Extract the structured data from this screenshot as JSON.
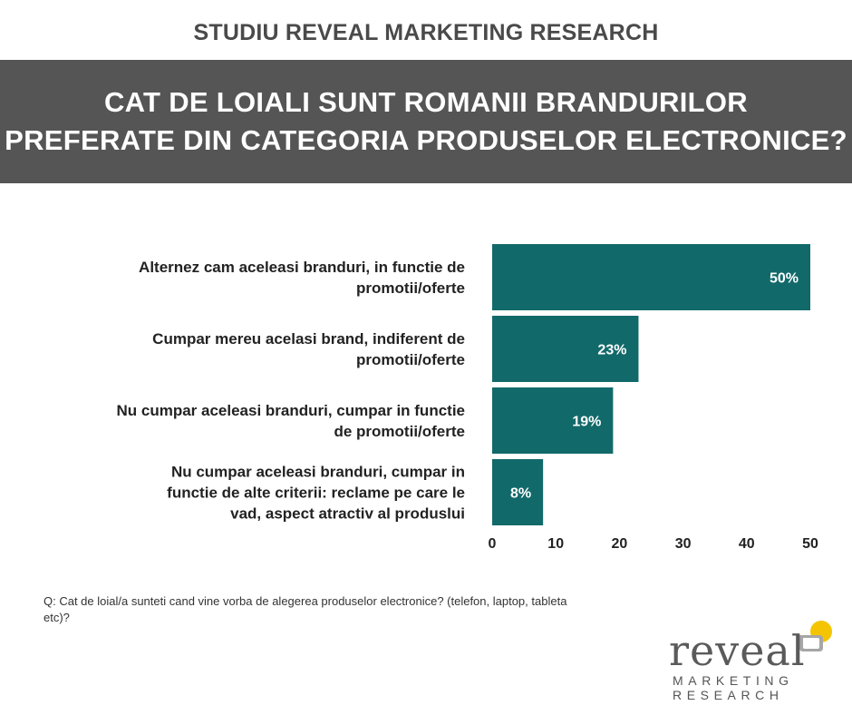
{
  "header": {
    "study_title": "STUDIU REVEAL MARKETING RESEARCH",
    "banner_line1": "CAT DE LOIALI SUNT ROMANII BRANDURILOR",
    "banner_line2": "PREFERATE DIN CATEGORIA PRODUSELOR ELECTRONICE?"
  },
  "chart_data": {
    "type": "bar",
    "orientation": "horizontal",
    "categories": [
      [
        "Alternez cam aceleasi branduri, in functie de",
        "promotii/oferte"
      ],
      [
        "Cumpar mereu acelasi brand, indiferent de",
        "promotii/oferte"
      ],
      [
        "Nu cumpar aceleasi branduri, cumpar in functie",
        "de promotii/oferte"
      ],
      [
        "Nu cumpar aceleasi branduri, cumpar in",
        "functie de alte criterii: reclame pe care le",
        "vad, aspect atractiv al produslui"
      ]
    ],
    "values": [
      50,
      23,
      19,
      8
    ],
    "data_labels": [
      "50%",
      "23%",
      "19%",
      "8%"
    ],
    "xlim": [
      0,
      50
    ],
    "xticks": [
      "0",
      "10",
      "20",
      "30",
      "40",
      "50"
    ],
    "bar_color": "#12696a",
    "grid": false
  },
  "footnote": {
    "question": "Q: Cat de loial/a sunteti cand vine vorba de alegerea produselor electronice? (telefon, laptop, tableta etc)?"
  },
  "logo": {
    "word": "reveal",
    "line1": "MARKETING",
    "line2": "RESEARCH",
    "accent_color": "#f5c400",
    "grey_color": "#9a9a9a"
  }
}
